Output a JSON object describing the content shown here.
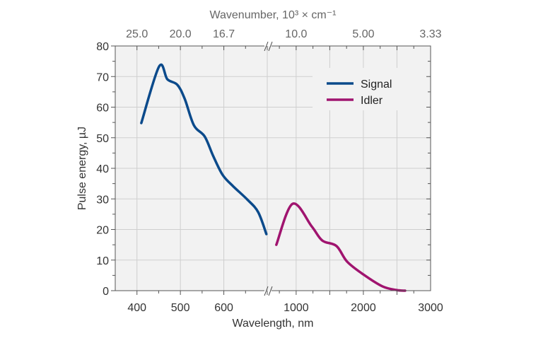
{
  "chart_data": {
    "type": "line",
    "xlabel": "Wavelength, nm",
    "ylabel": "Pulse energy, µJ",
    "top_axis_label": "Wavenumber, 10³ × cm⁻¹",
    "x_segments": [
      [
        350,
        700
      ],
      [
        570,
        3000
      ]
    ],
    "axis_break": true,
    "ylim": [
      0,
      80
    ],
    "yticks": [
      0,
      10,
      20,
      30,
      40,
      50,
      60,
      70,
      80
    ],
    "xticks_bottom": [
      {
        "value": 400,
        "label": "400"
      },
      {
        "value": 500,
        "label": "500"
      },
      {
        "value": 600,
        "label": "600"
      },
      {
        "value": 1000,
        "label": "1000"
      },
      {
        "value": 2000,
        "label": "2000"
      },
      {
        "value": 3000,
        "label": "3000"
      }
    ],
    "xticks_top": [
      {
        "value": 400,
        "label": "25.0"
      },
      {
        "value": 500,
        "label": "20.0"
      },
      {
        "value": 600,
        "label": "16.7"
      },
      {
        "value": 1000,
        "label": "10.0"
      },
      {
        "value": 2000,
        "label": "5.00"
      },
      {
        "value": 3000,
        "label": "3.33"
      }
    ],
    "grid": true,
    "legend_position": "top-right",
    "series": [
      {
        "name": "Signal",
        "color": "#0b4a8b",
        "x": [
          410,
          451,
          470,
          493,
          510,
          531,
          556,
          575,
          597,
          621,
          654,
          679,
          698
        ],
        "y": [
          54.8,
          73.3,
          69.1,
          67.3,
          62.7,
          54.1,
          50.4,
          44.2,
          37.9,
          34.2,
          29.8,
          25.7,
          18.5
        ]
      },
      {
        "name": "Idler",
        "color": "#a0146f",
        "x": [
          705,
          947,
          1232,
          1389,
          1600,
          1758,
          2000,
          2284,
          2495,
          2621
        ],
        "y": [
          15,
          28.4,
          21,
          16.4,
          14.6,
          9.5,
          5.3,
          1.4,
          0.2,
          0
        ]
      }
    ]
  }
}
